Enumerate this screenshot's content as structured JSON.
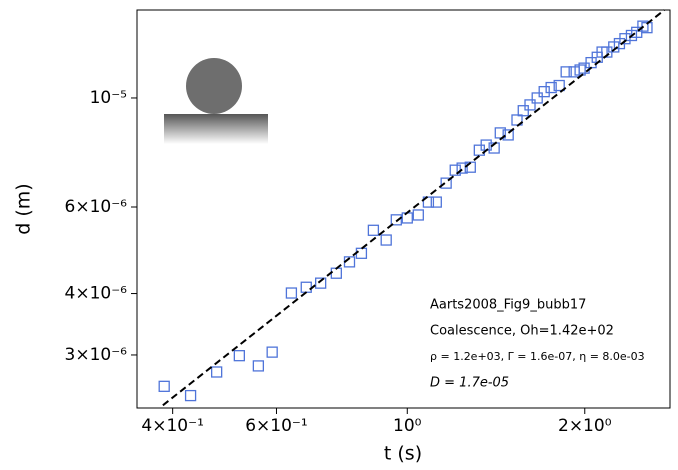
{
  "chart_data": {
    "type": "scatter",
    "x_label": "t (s)",
    "y_label": "d (m)",
    "xlim": [
      0.348,
      2.79
    ],
    "ylim": [
      2.34e-06,
      1.51e-05
    ],
    "xscale": "log",
    "yscale": "log",
    "xticks": [
      {
        "value": 0.4,
        "label": "4×10⁻¹"
      },
      {
        "value": 0.6,
        "label": "6×10⁻¹"
      },
      {
        "value": 1,
        "label": "10⁰"
      },
      {
        "value": 2,
        "label": "2×10⁰"
      }
    ],
    "yticks": [
      {
        "value": 3e-06,
        "label": "3×10⁻⁶"
      },
      {
        "value": 4e-06,
        "label": "4×10⁻⁶"
      },
      {
        "value": 6e-06,
        "label": "6×10⁻⁶"
      },
      {
        "value": 1e-05,
        "label": "10⁻⁵"
      }
    ],
    "annotations": [
      "Aarts2008_Fig9_bubb17",
      "Coalescence, Oh=1.42e+02",
      "ρ = 1.2e+03, Γ = 1.6e-07, η = 8.0e-03",
      "D = 1.7e-05"
    ],
    "series": [
      {
        "color": "#4f74d9",
        "x": [
          0.387,
          0.429,
          0.475,
          0.519,
          0.559,
          0.59,
          0.636,
          0.674,
          0.713,
          0.758,
          0.798,
          0.836,
          0.876,
          0.921,
          0.958,
          1.0,
          1.044,
          1.086,
          1.12,
          1.164,
          1.206,
          1.239,
          1.279,
          1.325,
          1.361,
          1.404,
          1.438,
          1.483,
          1.535,
          1.573,
          1.615,
          1.661,
          1.707,
          1.754,
          1.81,
          1.86,
          1.919,
          1.964,
          1.995,
          2.05,
          2.1,
          2.14,
          2.18,
          2.24,
          2.29,
          2.34,
          2.4,
          2.45,
          2.51,
          2.55
        ],
        "values": [
          2.59e-06,
          2.48e-06,
          2.77e-06,
          2.99e-06,
          2.85e-06,
          3.04e-06,
          4.01e-06,
          4.12e-06,
          4.2e-06,
          4.4e-06,
          4.64e-06,
          4.83e-06,
          5.38e-06,
          5.14e-06,
          5.65e-06,
          5.7e-06,
          5.78e-06,
          6.14e-06,
          6.14e-06,
          6.71e-06,
          7.13e-06,
          7.2e-06,
          7.23e-06,
          7.83e-06,
          8.02e-06,
          7.91e-06,
          8.49e-06,
          8.41e-06,
          9.02e-06,
          9.42e-06,
          9.68e-06,
          1e-05,
          1.03e-05,
          1.05e-05,
          1.06e-05,
          1.13e-05,
          1.13e-05,
          1.14e-05,
          1.15e-05,
          1.18e-05,
          1.21e-05,
          1.24e-05,
          1.24e-05,
          1.27e-05,
          1.29e-05,
          1.32e-05,
          1.34e-05,
          1.36e-05,
          1.4e-05,
          1.39e-05
        ]
      },
      {
        "type": "line",
        "color": "#000000",
        "dashed": true,
        "x": [
          0.385,
          2.73
        ],
        "values": [
          2.37e-06,
          1.51e-05
        ]
      }
    ]
  }
}
